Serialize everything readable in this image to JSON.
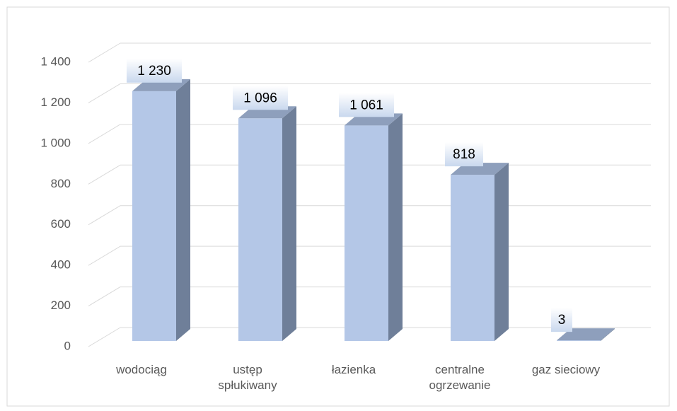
{
  "chart_data": {
    "type": "bar3d",
    "categories": [
      "wodociąg",
      "ustęp spłukiwany",
      "łazienka",
      "centralne ogrzewanie",
      "gaz sieciowy"
    ],
    "values": [
      1230,
      1096,
      1061,
      818,
      3
    ],
    "value_labels": [
      "1 230",
      "1 096",
      "1 061",
      "818",
      "3"
    ],
    "color": "#b4c7e7",
    "ylim": [
      0,
      1400
    ],
    "yticks": [
      0,
      200,
      400,
      600,
      800,
      {
        "value": 1000,
        "label": "1 000"
      },
      {
        "value": 1200,
        "label": "1 200"
      },
      {
        "value": 1400,
        "label": "1 400"
      }
    ],
    "grid": true
  }
}
